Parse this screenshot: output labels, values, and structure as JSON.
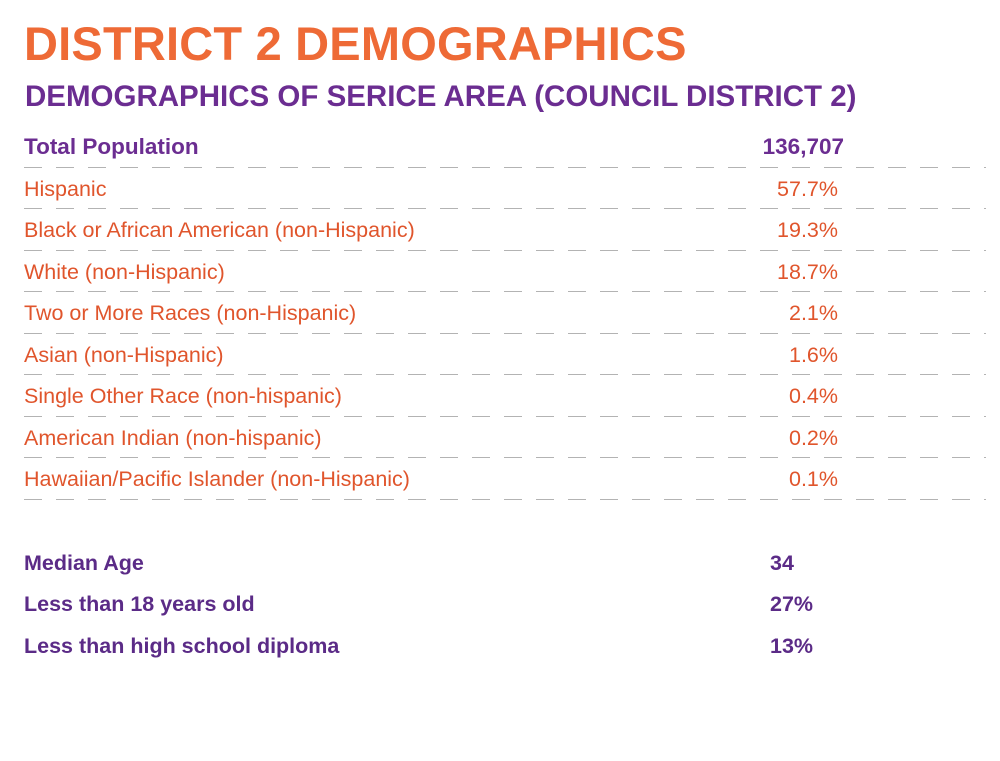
{
  "title": "DISTRICT 2 DEMOGRAPHICS",
  "subtitle": "DEMOGRAPHICS OF SERICE AREA (COUNCIL DISTRICT 2)",
  "total": {
    "label": "Total Population",
    "value": "136,707"
  },
  "races": [
    {
      "label": "Hispanic",
      "value": "57.7%"
    },
    {
      "label": "Black or African American (non-Hispanic)",
      "value": "19.3%"
    },
    {
      "label": "White (non-Hispanic)",
      "value": "18.7%"
    },
    {
      "label": "Two or More Races (non-Hispanic)",
      "value": "2.1%"
    },
    {
      "label": "Asian (non-Hispanic)",
      "value": "1.6%"
    },
    {
      "label": "Single Other Race (non-hispanic)",
      "value": "0.4%"
    },
    {
      "label": "American Indian (non-hispanic)",
      "value": "0.2%"
    },
    {
      "label": "Hawaiian/Pacific Islander (non-Hispanic)",
      "value": "0.1%"
    }
  ],
  "stats": [
    {
      "label": "Median Age",
      "value": "34"
    },
    {
      "label": "Less than 18 years old",
      "value": "27%"
    },
    {
      "label": "Less than high school diploma",
      "value": "13%"
    }
  ],
  "colors": {
    "title": "#ee6a36",
    "accent_purple": "#6b2d91",
    "race_text": "#e0552c",
    "divider": "#b3b3b3"
  }
}
